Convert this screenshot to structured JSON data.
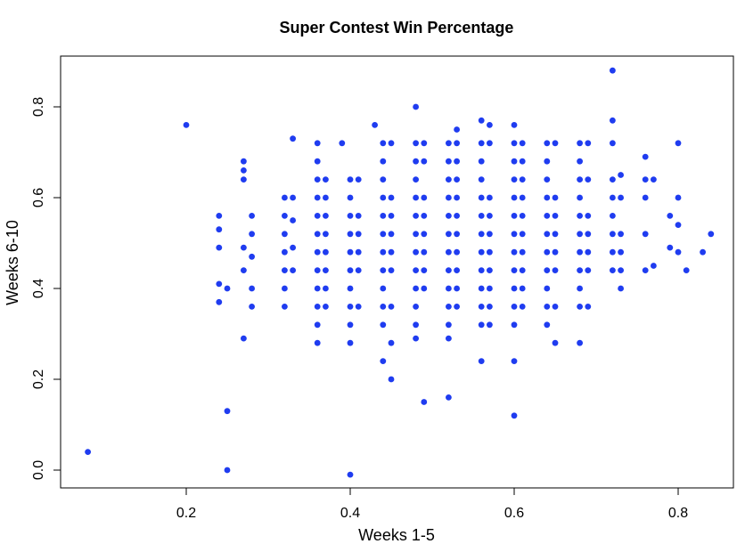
{
  "chart_data": {
    "type": "scatter",
    "title": "Super Contest Win Percentage",
    "xlabel": "Weeks 1-5",
    "ylabel": "Weeks 6-10",
    "xlim": [
      0.07,
      0.84
    ],
    "ylim": [
      -0.01,
      0.9
    ],
    "x_ticks": [
      0.2,
      0.4,
      0.6,
      0.8
    ],
    "y_ticks": [
      0.0,
      0.2,
      0.4,
      0.6,
      0.8
    ],
    "x_tick_labels": [
      "0.2",
      "0.4",
      "0.6",
      "0.8"
    ],
    "y_tick_labels": [
      "0.0",
      "0.2",
      "0.4",
      "0.6",
      "0.8"
    ],
    "grid": false,
    "legend": "none",
    "point_color": "#1f3cf0",
    "point_shape": "filled-circle",
    "points": [
      [
        0.08,
        0.04
      ],
      [
        0.2,
        0.76
      ],
      [
        0.25,
        0.13
      ],
      [
        0.25,
        0.0
      ],
      [
        0.4,
        -0.01
      ],
      [
        0.24,
        0.49
      ],
      [
        0.24,
        0.53
      ],
      [
        0.24,
        0.56
      ],
      [
        0.24,
        0.41
      ],
      [
        0.24,
        0.37
      ],
      [
        0.25,
        0.4
      ],
      [
        0.27,
        0.68
      ],
      [
        0.27,
        0.66
      ],
      [
        0.27,
        0.64
      ],
      [
        0.28,
        0.56
      ],
      [
        0.28,
        0.52
      ],
      [
        0.27,
        0.49
      ],
      [
        0.28,
        0.47
      ],
      [
        0.27,
        0.44
      ],
      [
        0.28,
        0.4
      ],
      [
        0.28,
        0.36
      ],
      [
        0.27,
        0.29
      ],
      [
        0.32,
        0.6
      ],
      [
        0.32,
        0.56
      ],
      [
        0.32,
        0.52
      ],
      [
        0.32,
        0.48
      ],
      [
        0.32,
        0.44
      ],
      [
        0.32,
        0.4
      ],
      [
        0.32,
        0.36
      ],
      [
        0.33,
        0.73
      ],
      [
        0.33,
        0.6
      ],
      [
        0.33,
        0.55
      ],
      [
        0.33,
        0.49
      ],
      [
        0.33,
        0.44
      ],
      [
        0.36,
        0.72
      ],
      [
        0.36,
        0.68
      ],
      [
        0.36,
        0.64
      ],
      [
        0.36,
        0.6
      ],
      [
        0.36,
        0.56
      ],
      [
        0.36,
        0.52
      ],
      [
        0.36,
        0.48
      ],
      [
        0.36,
        0.44
      ],
      [
        0.36,
        0.4
      ],
      [
        0.36,
        0.36
      ],
      [
        0.36,
        0.32
      ],
      [
        0.36,
        0.28
      ],
      [
        0.37,
        0.64
      ],
      [
        0.37,
        0.6
      ],
      [
        0.37,
        0.56
      ],
      [
        0.37,
        0.52
      ],
      [
        0.37,
        0.48
      ],
      [
        0.37,
        0.44
      ],
      [
        0.37,
        0.4
      ],
      [
        0.37,
        0.36
      ],
      [
        0.39,
        0.72
      ],
      [
        0.4,
        0.64
      ],
      [
        0.4,
        0.6
      ],
      [
        0.4,
        0.56
      ],
      [
        0.4,
        0.52
      ],
      [
        0.4,
        0.48
      ],
      [
        0.4,
        0.44
      ],
      [
        0.4,
        0.4
      ],
      [
        0.4,
        0.36
      ],
      [
        0.4,
        0.32
      ],
      [
        0.4,
        0.28
      ],
      [
        0.41,
        0.64
      ],
      [
        0.41,
        0.56
      ],
      [
        0.41,
        0.52
      ],
      [
        0.41,
        0.48
      ],
      [
        0.41,
        0.44
      ],
      [
        0.41,
        0.36
      ],
      [
        0.43,
        0.76
      ],
      [
        0.44,
        0.72
      ],
      [
        0.44,
        0.68
      ],
      [
        0.44,
        0.64
      ],
      [
        0.44,
        0.6
      ],
      [
        0.44,
        0.56
      ],
      [
        0.44,
        0.52
      ],
      [
        0.44,
        0.48
      ],
      [
        0.44,
        0.44
      ],
      [
        0.44,
        0.4
      ],
      [
        0.44,
        0.36
      ],
      [
        0.44,
        0.32
      ],
      [
        0.44,
        0.24
      ],
      [
        0.45,
        0.72
      ],
      [
        0.45,
        0.6
      ],
      [
        0.45,
        0.56
      ],
      [
        0.45,
        0.52
      ],
      [
        0.45,
        0.48
      ],
      [
        0.45,
        0.44
      ],
      [
        0.45,
        0.36
      ],
      [
        0.45,
        0.28
      ],
      [
        0.45,
        0.2
      ],
      [
        0.48,
        0.8
      ],
      [
        0.48,
        0.72
      ],
      [
        0.48,
        0.68
      ],
      [
        0.48,
        0.64
      ],
      [
        0.48,
        0.6
      ],
      [
        0.48,
        0.56
      ],
      [
        0.48,
        0.52
      ],
      [
        0.48,
        0.48
      ],
      [
        0.48,
        0.44
      ],
      [
        0.48,
        0.4
      ],
      [
        0.48,
        0.36
      ],
      [
        0.48,
        0.32
      ],
      [
        0.48,
        0.29
      ],
      [
        0.49,
        0.72
      ],
      [
        0.49,
        0.68
      ],
      [
        0.49,
        0.6
      ],
      [
        0.49,
        0.56
      ],
      [
        0.49,
        0.52
      ],
      [
        0.49,
        0.48
      ],
      [
        0.49,
        0.44
      ],
      [
        0.49,
        0.4
      ],
      [
        0.49,
        0.15
      ],
      [
        0.52,
        0.72
      ],
      [
        0.52,
        0.68
      ],
      [
        0.52,
        0.64
      ],
      [
        0.52,
        0.6
      ],
      [
        0.52,
        0.56
      ],
      [
        0.52,
        0.52
      ],
      [
        0.52,
        0.48
      ],
      [
        0.52,
        0.44
      ],
      [
        0.52,
        0.4
      ],
      [
        0.52,
        0.36
      ],
      [
        0.52,
        0.32
      ],
      [
        0.52,
        0.29
      ],
      [
        0.52,
        0.16
      ],
      [
        0.53,
        0.75
      ],
      [
        0.53,
        0.72
      ],
      [
        0.53,
        0.68
      ],
      [
        0.53,
        0.64
      ],
      [
        0.53,
        0.6
      ],
      [
        0.53,
        0.56
      ],
      [
        0.53,
        0.52
      ],
      [
        0.53,
        0.48
      ],
      [
        0.53,
        0.44
      ],
      [
        0.53,
        0.4
      ],
      [
        0.53,
        0.36
      ],
      [
        0.56,
        0.77
      ],
      [
        0.56,
        0.72
      ],
      [
        0.56,
        0.68
      ],
      [
        0.56,
        0.64
      ],
      [
        0.56,
        0.6
      ],
      [
        0.56,
        0.56
      ],
      [
        0.56,
        0.52
      ],
      [
        0.56,
        0.48
      ],
      [
        0.56,
        0.44
      ],
      [
        0.56,
        0.4
      ],
      [
        0.56,
        0.36
      ],
      [
        0.56,
        0.32
      ],
      [
        0.56,
        0.24
      ],
      [
        0.57,
        0.76
      ],
      [
        0.57,
        0.72
      ],
      [
        0.57,
        0.6
      ],
      [
        0.57,
        0.56
      ],
      [
        0.57,
        0.52
      ],
      [
        0.57,
        0.48
      ],
      [
        0.57,
        0.44
      ],
      [
        0.57,
        0.4
      ],
      [
        0.57,
        0.36
      ],
      [
        0.57,
        0.32
      ],
      [
        0.6,
        0.76
      ],
      [
        0.6,
        0.72
      ],
      [
        0.6,
        0.68
      ],
      [
        0.6,
        0.64
      ],
      [
        0.6,
        0.6
      ],
      [
        0.6,
        0.56
      ],
      [
        0.6,
        0.52
      ],
      [
        0.6,
        0.48
      ],
      [
        0.6,
        0.44
      ],
      [
        0.6,
        0.4
      ],
      [
        0.6,
        0.36
      ],
      [
        0.6,
        0.32
      ],
      [
        0.6,
        0.24
      ],
      [
        0.6,
        0.12
      ],
      [
        0.61,
        0.72
      ],
      [
        0.61,
        0.68
      ],
      [
        0.61,
        0.64
      ],
      [
        0.61,
        0.6
      ],
      [
        0.61,
        0.56
      ],
      [
        0.61,
        0.52
      ],
      [
        0.61,
        0.48
      ],
      [
        0.61,
        0.44
      ],
      [
        0.61,
        0.4
      ],
      [
        0.61,
        0.36
      ],
      [
        0.64,
        0.72
      ],
      [
        0.64,
        0.68
      ],
      [
        0.64,
        0.64
      ],
      [
        0.64,
        0.6
      ],
      [
        0.64,
        0.56
      ],
      [
        0.64,
        0.52
      ],
      [
        0.64,
        0.48
      ],
      [
        0.64,
        0.44
      ],
      [
        0.64,
        0.4
      ],
      [
        0.64,
        0.36
      ],
      [
        0.64,
        0.32
      ],
      [
        0.65,
        0.72
      ],
      [
        0.65,
        0.6
      ],
      [
        0.65,
        0.56
      ],
      [
        0.65,
        0.52
      ],
      [
        0.65,
        0.48
      ],
      [
        0.65,
        0.44
      ],
      [
        0.65,
        0.36
      ],
      [
        0.65,
        0.28
      ],
      [
        0.68,
        0.72
      ],
      [
        0.68,
        0.68
      ],
      [
        0.68,
        0.64
      ],
      [
        0.68,
        0.6
      ],
      [
        0.68,
        0.56
      ],
      [
        0.68,
        0.52
      ],
      [
        0.68,
        0.48
      ],
      [
        0.68,
        0.44
      ],
      [
        0.68,
        0.4
      ],
      [
        0.68,
        0.36
      ],
      [
        0.68,
        0.28
      ],
      [
        0.69,
        0.72
      ],
      [
        0.69,
        0.64
      ],
      [
        0.69,
        0.56
      ],
      [
        0.69,
        0.52
      ],
      [
        0.69,
        0.48
      ],
      [
        0.69,
        0.44
      ],
      [
        0.69,
        0.36
      ],
      [
        0.72,
        0.77
      ],
      [
        0.72,
        0.72
      ],
      [
        0.72,
        0.64
      ],
      [
        0.72,
        0.6
      ],
      [
        0.72,
        0.56
      ],
      [
        0.72,
        0.52
      ],
      [
        0.72,
        0.48
      ],
      [
        0.72,
        0.44
      ],
      [
        0.72,
        0.88
      ],
      [
        0.73,
        0.65
      ],
      [
        0.73,
        0.6
      ],
      [
        0.73,
        0.52
      ],
      [
        0.73,
        0.48
      ],
      [
        0.73,
        0.44
      ],
      [
        0.73,
        0.4
      ],
      [
        0.76,
        0.69
      ],
      [
        0.76,
        0.64
      ],
      [
        0.76,
        0.6
      ],
      [
        0.76,
        0.52
      ],
      [
        0.76,
        0.44
      ],
      [
        0.77,
        0.64
      ],
      [
        0.77,
        0.45
      ],
      [
        0.8,
        0.72
      ],
      [
        0.79,
        0.56
      ],
      [
        0.8,
        0.6
      ],
      [
        0.8,
        0.48
      ],
      [
        0.79,
        0.49
      ],
      [
        0.8,
        0.54
      ],
      [
        0.81,
        0.44
      ],
      [
        0.83,
        0.48
      ],
      [
        0.84,
        0.52
      ]
    ]
  }
}
